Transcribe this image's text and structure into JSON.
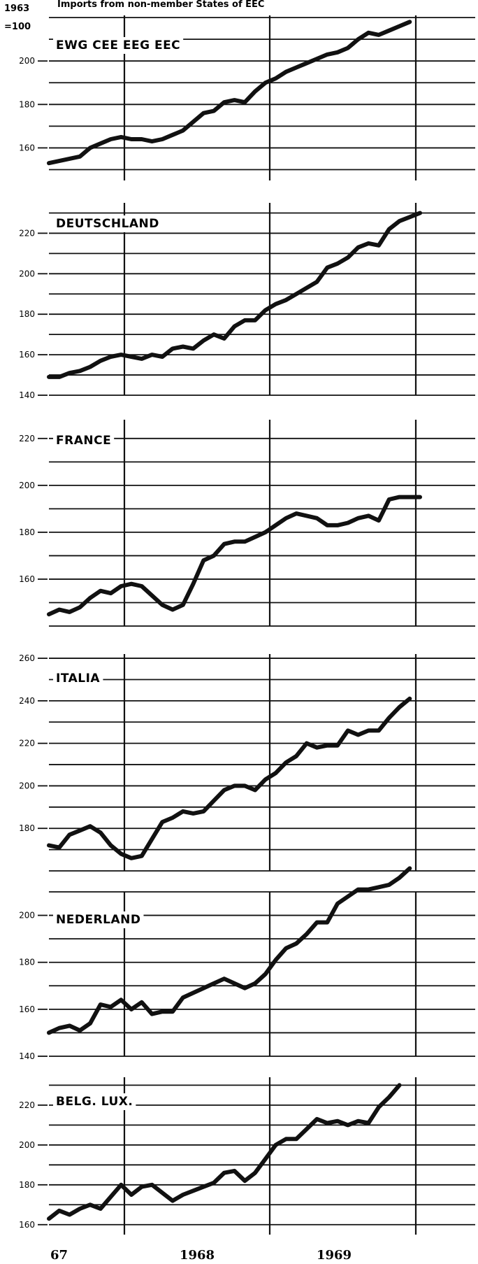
{
  "header": {
    "base_line1": "1963",
    "base_line2": "=100",
    "title": "Imports from non-member States of EEC"
  },
  "x_axis": {
    "labels": [
      "67",
      "1968",
      "1969"
    ]
  },
  "colors": {
    "line": "#111111",
    "grid": "#111111",
    "background": "#ffffff"
  },
  "chart_data": [
    {
      "type": "line",
      "title": "EWG CEE EEG EEC",
      "ylim": [
        145,
        221
      ],
      "yticks": [
        "160",
        "180",
        "200"
      ],
      "series": [
        {
          "values": [
            153,
            154,
            155,
            156,
            160,
            162,
            164,
            165,
            164,
            164,
            163,
            164,
            166,
            168,
            172,
            176,
            177,
            181,
            182,
            181,
            186,
            190,
            192,
            195,
            197,
            199,
            201,
            203,
            204,
            206,
            210,
            213,
            212,
            214,
            216,
            218
          ]
        }
      ]
    },
    {
      "type": "line",
      "title": "DEUTSCHLAND",
      "ylim": [
        140,
        235
      ],
      "yticks": [
        "140",
        "160",
        "180",
        "200",
        "220"
      ],
      "series": [
        {
          "values": [
            149,
            149,
            151,
            152,
            154,
            157,
            159,
            160,
            159,
            158,
            160,
            159,
            163,
            164,
            163,
            167,
            170,
            168,
            174,
            177,
            177,
            182,
            185,
            187,
            190,
            193,
            196,
            203,
            205,
            208,
            213,
            215,
            214,
            222,
            226,
            228,
            230
          ]
        }
      ]
    },
    {
      "type": "line",
      "title": "FRANCE",
      "ylim": [
        140,
        228
      ],
      "yticks": [
        "160",
        "180",
        "200",
        "220"
      ],
      "series": [
        {
          "values": [
            145,
            147,
            146,
            148,
            152,
            155,
            154,
            157,
            158,
            157,
            153,
            149,
            147,
            149,
            158,
            168,
            170,
            175,
            176,
            176,
            178,
            180,
            183,
            186,
            188,
            187,
            186,
            183,
            183,
            184,
            186,
            187,
            185,
            194,
            195,
            195,
            195
          ]
        }
      ]
    },
    {
      "type": "line",
      "title": "ITALIA",
      "ylim": [
        160,
        262
      ],
      "yticks": [
        "180",
        "200",
        "220",
        "240",
        "260"
      ],
      "series": [
        {
          "values": [
            172,
            171,
            177,
            179,
            181,
            178,
            172,
            168,
            166,
            167,
            175,
            183,
            185,
            188,
            187,
            188,
            193,
            198,
            200,
            200,
            198,
            203,
            206,
            211,
            214,
            220,
            218,
            219,
            219,
            226,
            224,
            226,
            226,
            232,
            237,
            241
          ]
        }
      ]
    },
    {
      "type": "line",
      "title": "NEDERLAND",
      "ylim": [
        140,
        210
      ],
      "yticks": [
        "140",
        "160",
        "180",
        "200"
      ],
      "series": [
        {
          "values": [
            150,
            152,
            153,
            151,
            154,
            162,
            161,
            164,
            160,
            163,
            158,
            159,
            159,
            165,
            167,
            169,
            171,
            173,
            171,
            169,
            171,
            175,
            181,
            186,
            188,
            192,
            197,
            197,
            205,
            208,
            211,
            211,
            212,
            213,
            216,
            220
          ]
        }
      ]
    },
    {
      "type": "line",
      "title": "BELG. LUX.",
      "ylim": [
        155,
        234
      ],
      "yticks": [
        "160",
        "180",
        "200",
        "220"
      ],
      "series": [
        {
          "values": [
            163,
            167,
            165,
            168,
            170,
            168,
            174,
            180,
            175,
            179,
            180,
            176,
            172,
            175,
            177,
            179,
            181,
            186,
            187,
            182,
            186,
            193,
            200,
            203,
            203,
            208,
            213,
            211,
            212,
            210,
            212,
            211,
            219,
            224,
            230
          ]
        }
      ]
    }
  ]
}
